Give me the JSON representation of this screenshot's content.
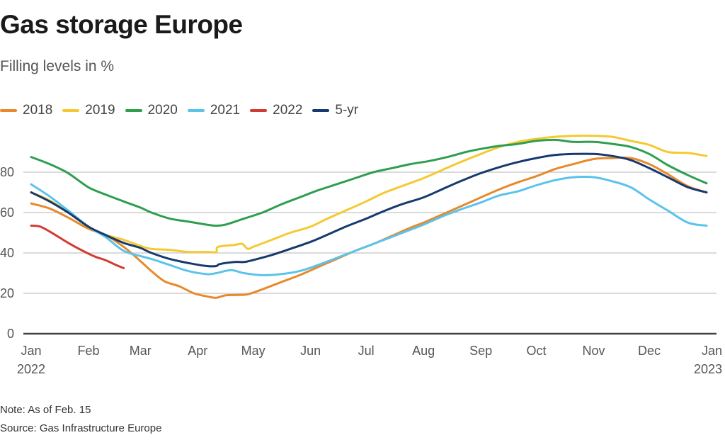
{
  "title": "Gas storage Europe",
  "subtitle": "Filling levels in %",
  "note": "Note: As of Feb. 15",
  "source": "Source: Gas Infrastructure Europe",
  "chart_data": {
    "type": "line",
    "title": "Gas storage Europe",
    "subtitle": "Filling levels in %",
    "xlabel": "",
    "ylabel": "Filling levels in %",
    "ylim": [
      0,
      100
    ],
    "y_ticks": [
      0,
      20,
      40,
      60,
      80
    ],
    "x_ticks": [
      {
        "day": 0,
        "label": "Jan",
        "sub": "2022"
      },
      {
        "day": 31,
        "label": "Feb",
        "sub": ""
      },
      {
        "day": 59,
        "label": "Mar",
        "sub": ""
      },
      {
        "day": 90,
        "label": "Apr",
        "sub": ""
      },
      {
        "day": 120,
        "label": "May",
        "sub": ""
      },
      {
        "day": 151,
        "label": "Jun",
        "sub": ""
      },
      {
        "day": 181,
        "label": "Jul",
        "sub": ""
      },
      {
        "day": 212,
        "label": "Aug",
        "sub": ""
      },
      {
        "day": 243,
        "label": "Sep",
        "sub": ""
      },
      {
        "day": 273,
        "label": "Oct",
        "sub": ""
      },
      {
        "day": 304,
        "label": "Nov",
        "sub": ""
      },
      {
        "day": 334,
        "label": "Dec",
        "sub": ""
      },
      {
        "day": 365,
        "label": "Jan",
        "sub": "2023"
      }
    ],
    "grid": true,
    "legend_position": "top-left",
    "x_unit": "day of year",
    "series": [
      {
        "name": "2018",
        "color": "#e8892b",
        "points": [
          [
            0,
            64.5
          ],
          [
            10,
            62
          ],
          [
            20,
            57.5
          ],
          [
            31,
            52
          ],
          [
            40,
            49
          ],
          [
            50,
            43
          ],
          [
            59,
            36
          ],
          [
            65,
            31
          ],
          [
            72,
            26
          ],
          [
            80,
            23.5
          ],
          [
            88,
            20
          ],
          [
            95,
            18.5
          ],
          [
            100,
            17.8
          ],
          [
            105,
            19
          ],
          [
            112,
            19.2
          ],
          [
            117,
            19.5
          ],
          [
            125,
            22
          ],
          [
            135,
            25.5
          ],
          [
            145,
            29
          ],
          [
            155,
            33
          ],
          [
            165,
            37
          ],
          [
            175,
            41
          ],
          [
            185,
            44.5
          ],
          [
            195,
            48.5
          ],
          [
            205,
            52.5
          ],
          [
            212,
            55
          ],
          [
            222,
            59
          ],
          [
            232,
            63
          ],
          [
            243,
            67.5
          ],
          [
            253,
            71.5
          ],
          [
            263,
            75
          ],
          [
            273,
            78
          ],
          [
            283,
            81.5
          ],
          [
            293,
            84
          ],
          [
            304,
            86.5
          ],
          [
            314,
            87
          ],
          [
            324,
            87
          ],
          [
            334,
            84
          ],
          [
            344,
            79
          ],
          [
            355,
            73
          ],
          [
            365,
            70
          ]
        ]
      },
      {
        "name": "2019",
        "color": "#f5c932",
        "points": [
          [
            0,
            70
          ],
          [
            10,
            66
          ],
          [
            20,
            60
          ],
          [
            31,
            53
          ],
          [
            40,
            49
          ],
          [
            50,
            46.5
          ],
          [
            59,
            43.5
          ],
          [
            65,
            42
          ],
          [
            75,
            41.5
          ],
          [
            85,
            40.5
          ],
          [
            95,
            40.5
          ],
          [
            100,
            40.5
          ],
          [
            101,
            43
          ],
          [
            110,
            44
          ],
          [
            114,
            44.5
          ],
          [
            117,
            42
          ],
          [
            120,
            43
          ],
          [
            130,
            46.5
          ],
          [
            140,
            50
          ],
          [
            151,
            53
          ],
          [
            160,
            57
          ],
          [
            170,
            61
          ],
          [
            181,
            65.5
          ],
          [
            190,
            69.5
          ],
          [
            200,
            73
          ],
          [
            212,
            77
          ],
          [
            222,
            81
          ],
          [
            232,
            85
          ],
          [
            243,
            89
          ],
          [
            253,
            92.5
          ],
          [
            263,
            95
          ],
          [
            273,
            96.5
          ],
          [
            283,
            97.5
          ],
          [
            293,
            98
          ],
          [
            304,
            98
          ],
          [
            314,
            97.5
          ],
          [
            324,
            95.5
          ],
          [
            334,
            93.5
          ],
          [
            344,
            90
          ],
          [
            355,
            89.5
          ],
          [
            365,
            88
          ]
        ]
      },
      {
        "name": "2020",
        "color": "#2e9e4f",
        "points": [
          [
            0,
            87.5
          ],
          [
            10,
            84
          ],
          [
            20,
            79.5
          ],
          [
            31,
            72.5
          ],
          [
            40,
            69
          ],
          [
            50,
            65.5
          ],
          [
            59,
            62.5
          ],
          [
            65,
            60
          ],
          [
            75,
            57
          ],
          [
            85,
            55.5
          ],
          [
            95,
            54
          ],
          [
            100,
            53.5
          ],
          [
            105,
            54
          ],
          [
            115,
            57
          ],
          [
            125,
            60
          ],
          [
            135,
            64
          ],
          [
            145,
            67.5
          ],
          [
            155,
            71
          ],
          [
            165,
            74
          ],
          [
            175,
            77
          ],
          [
            185,
            80
          ],
          [
            195,
            82
          ],
          [
            205,
            84
          ],
          [
            215,
            85.5
          ],
          [
            225,
            87.5
          ],
          [
            235,
            90
          ],
          [
            243,
            91.5
          ],
          [
            253,
            93
          ],
          [
            263,
            94
          ],
          [
            273,
            95.5
          ],
          [
            283,
            96
          ],
          [
            293,
            95
          ],
          [
            304,
            95
          ],
          [
            314,
            94
          ],
          [
            324,
            92.5
          ],
          [
            334,
            89
          ],
          [
            344,
            83.5
          ],
          [
            355,
            78.5
          ],
          [
            365,
            74.5
          ]
        ]
      },
      {
        "name": "2021",
        "color": "#5bc3ec",
        "points": [
          [
            0,
            74
          ],
          [
            10,
            68
          ],
          [
            20,
            61
          ],
          [
            31,
            53
          ],
          [
            40,
            48
          ],
          [
            50,
            41
          ],
          [
            59,
            38.5
          ],
          [
            65,
            37
          ],
          [
            75,
            34
          ],
          [
            85,
            31
          ],
          [
            95,
            29.5
          ],
          [
            100,
            30
          ],
          [
            108,
            31.5
          ],
          [
            115,
            30
          ],
          [
            125,
            29
          ],
          [
            135,
            29.5
          ],
          [
            145,
            31
          ],
          [
            155,
            34
          ],
          [
            165,
            37.5
          ],
          [
            175,
            41
          ],
          [
            185,
            44.5
          ],
          [
            195,
            48
          ],
          [
            205,
            51.5
          ],
          [
            212,
            54
          ],
          [
            222,
            58
          ],
          [
            232,
            61.5
          ],
          [
            243,
            65
          ],
          [
            253,
            68.5
          ],
          [
            263,
            70.5
          ],
          [
            273,
            73.5
          ],
          [
            283,
            76
          ],
          [
            293,
            77.5
          ],
          [
            304,
            77.5
          ],
          [
            314,
            75.5
          ],
          [
            324,
            72.5
          ],
          [
            334,
            66.5
          ],
          [
            344,
            61
          ],
          [
            355,
            55
          ],
          [
            365,
            53.5
          ]
        ]
      },
      {
        "name": "2022",
        "color": "#d23b33",
        "points": [
          [
            0,
            53.5
          ],
          [
            5,
            53
          ],
          [
            12,
            49.5
          ],
          [
            20,
            45
          ],
          [
            28,
            41
          ],
          [
            35,
            38
          ],
          [
            40,
            36.5
          ],
          [
            46,
            34
          ],
          [
            50,
            32.5
          ]
        ]
      },
      {
        "name": "5-yr",
        "color": "#163a6e",
        "points": [
          [
            0,
            70
          ],
          [
            10,
            65.5
          ],
          [
            20,
            60
          ],
          [
            31,
            53
          ],
          [
            40,
            49
          ],
          [
            50,
            45
          ],
          [
            59,
            42.5
          ],
          [
            65,
            40
          ],
          [
            75,
            37
          ],
          [
            85,
            35
          ],
          [
            95,
            33.5
          ],
          [
            100,
            33.5
          ],
          [
            102,
            34.5
          ],
          [
            110,
            35.5
          ],
          [
            115,
            35.5
          ],
          [
            120,
            36.5
          ],
          [
            130,
            39
          ],
          [
            140,
            42
          ],
          [
            151,
            45.5
          ],
          [
            160,
            49
          ],
          [
            170,
            53
          ],
          [
            181,
            57
          ],
          [
            190,
            60.5
          ],
          [
            200,
            64
          ],
          [
            212,
            67.5
          ],
          [
            222,
            71.5
          ],
          [
            232,
            75.5
          ],
          [
            243,
            79.5
          ],
          [
            253,
            82.5
          ],
          [
            263,
            85
          ],
          [
            273,
            87
          ],
          [
            283,
            88.5
          ],
          [
            293,
            89
          ],
          [
            304,
            89
          ],
          [
            314,
            88
          ],
          [
            324,
            86
          ],
          [
            334,
            82
          ],
          [
            344,
            77.5
          ],
          [
            355,
            72.5
          ],
          [
            365,
            70
          ]
        ]
      }
    ]
  }
}
